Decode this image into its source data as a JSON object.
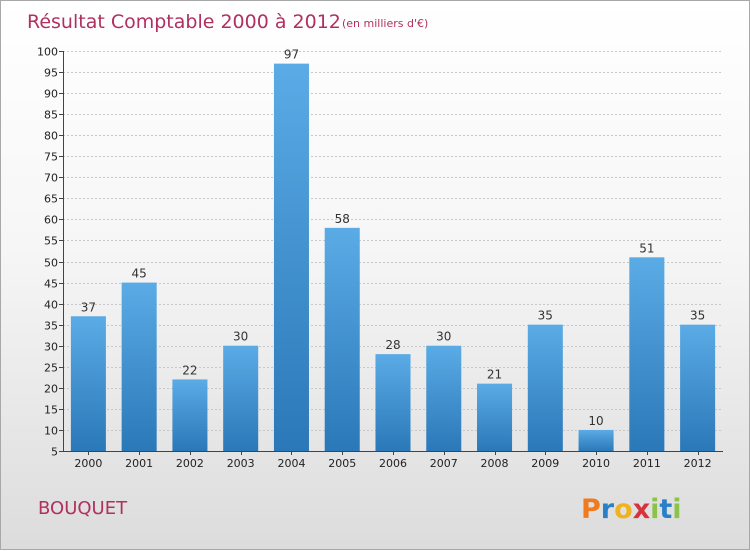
{
  "chart_data": {
    "type": "bar",
    "title": "Résultat Comptable 2000 à 2012",
    "subtitle": "(en milliers d'€)",
    "categories": [
      "2000",
      "2001",
      "2002",
      "2003",
      "2004",
      "2005",
      "2006",
      "2007",
      "2008",
      "2009",
      "2010",
      "2011",
      "2012"
    ],
    "values": [
      37,
      45,
      22,
      30,
      97,
      58,
      28,
      30,
      21,
      35,
      10,
      51,
      35
    ],
    "ylim": [
      5,
      100
    ],
    "yticks": [
      5,
      10,
      15,
      20,
      25,
      30,
      35,
      40,
      45,
      50,
      55,
      60,
      65,
      70,
      75,
      80,
      85,
      90,
      95,
      100
    ],
    "grid": true,
    "bar_color_top": "#5aabe6",
    "bar_color_bottom": "#2b78b8"
  },
  "place_name": "BOUQUET",
  "logo": {
    "letters": [
      "P",
      "r",
      "o",
      "x",
      "i",
      "t",
      "i"
    ],
    "colors": [
      "#f07b1e",
      "#2a80c8",
      "#f0b21e",
      "#d8323c",
      "#8bc34a",
      "#2a80c8",
      "#8bc34a"
    ]
  }
}
